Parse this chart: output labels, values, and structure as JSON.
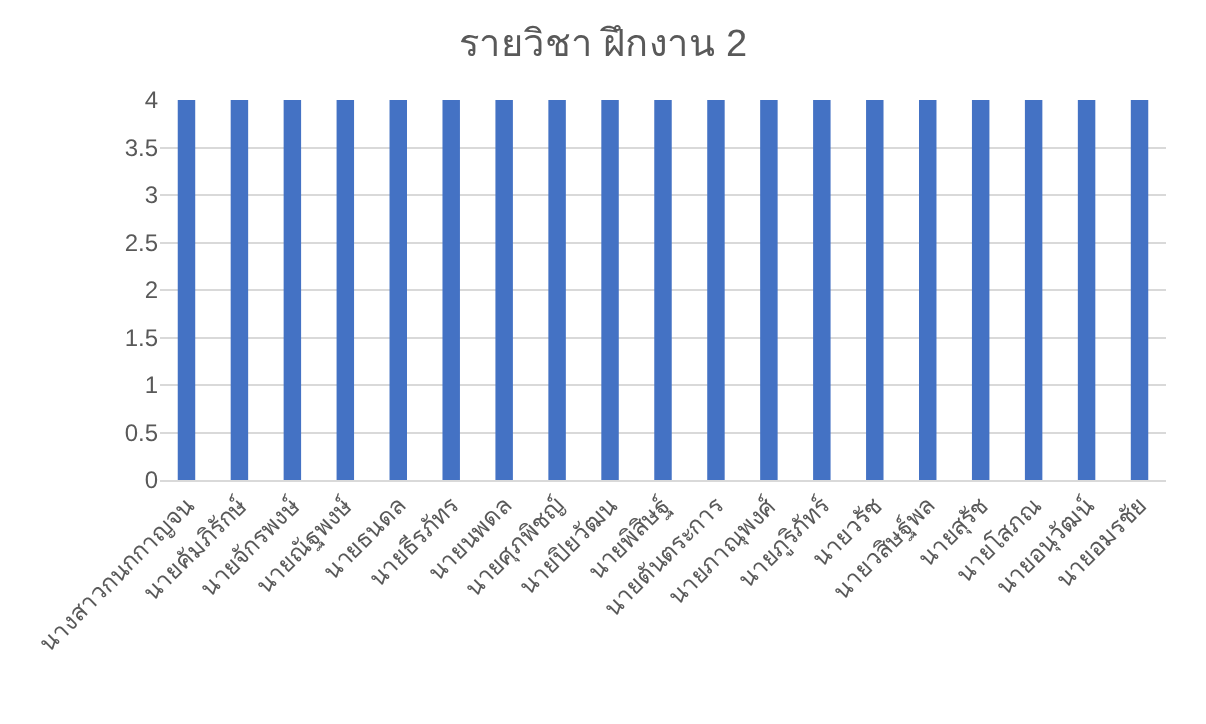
{
  "chart_data": {
    "type": "bar",
    "title": "รายวิชา ฝึกงาน 2",
    "categories": [
      "นางสาวกนกกาญจน",
      "นายคัมภิรักษ์",
      "นายจักรพงษ์",
      "นายณัฐพงษ์",
      "นายธนดล",
      "นายธีรภัทร",
      "นายนพดล",
      "นายศุภพิชญ์",
      "นายปิยวัฒน",
      "นายพิสิษฐ์",
      "นายตันตระการ",
      "นายภาณุพงศ์",
      "นายภูริภัทร์",
      "นายวรัช",
      "นายวสิษฐ์พล",
      "นายสุรัช",
      "นายโสภณ",
      "นายอนุวัฒน์",
      "นายอมรชัย"
    ],
    "values": [
      4,
      4,
      4,
      4,
      4,
      4,
      4,
      4,
      4,
      4,
      4,
      4,
      4,
      4,
      4,
      4,
      4,
      4,
      4
    ],
    "color": "#4472c4",
    "ylim": [
      0,
      4
    ],
    "yticks": [
      0,
      0.5,
      1,
      1.5,
      2,
      2.5,
      3,
      3.5,
      4
    ],
    "grid": "y",
    "legend": false
  }
}
